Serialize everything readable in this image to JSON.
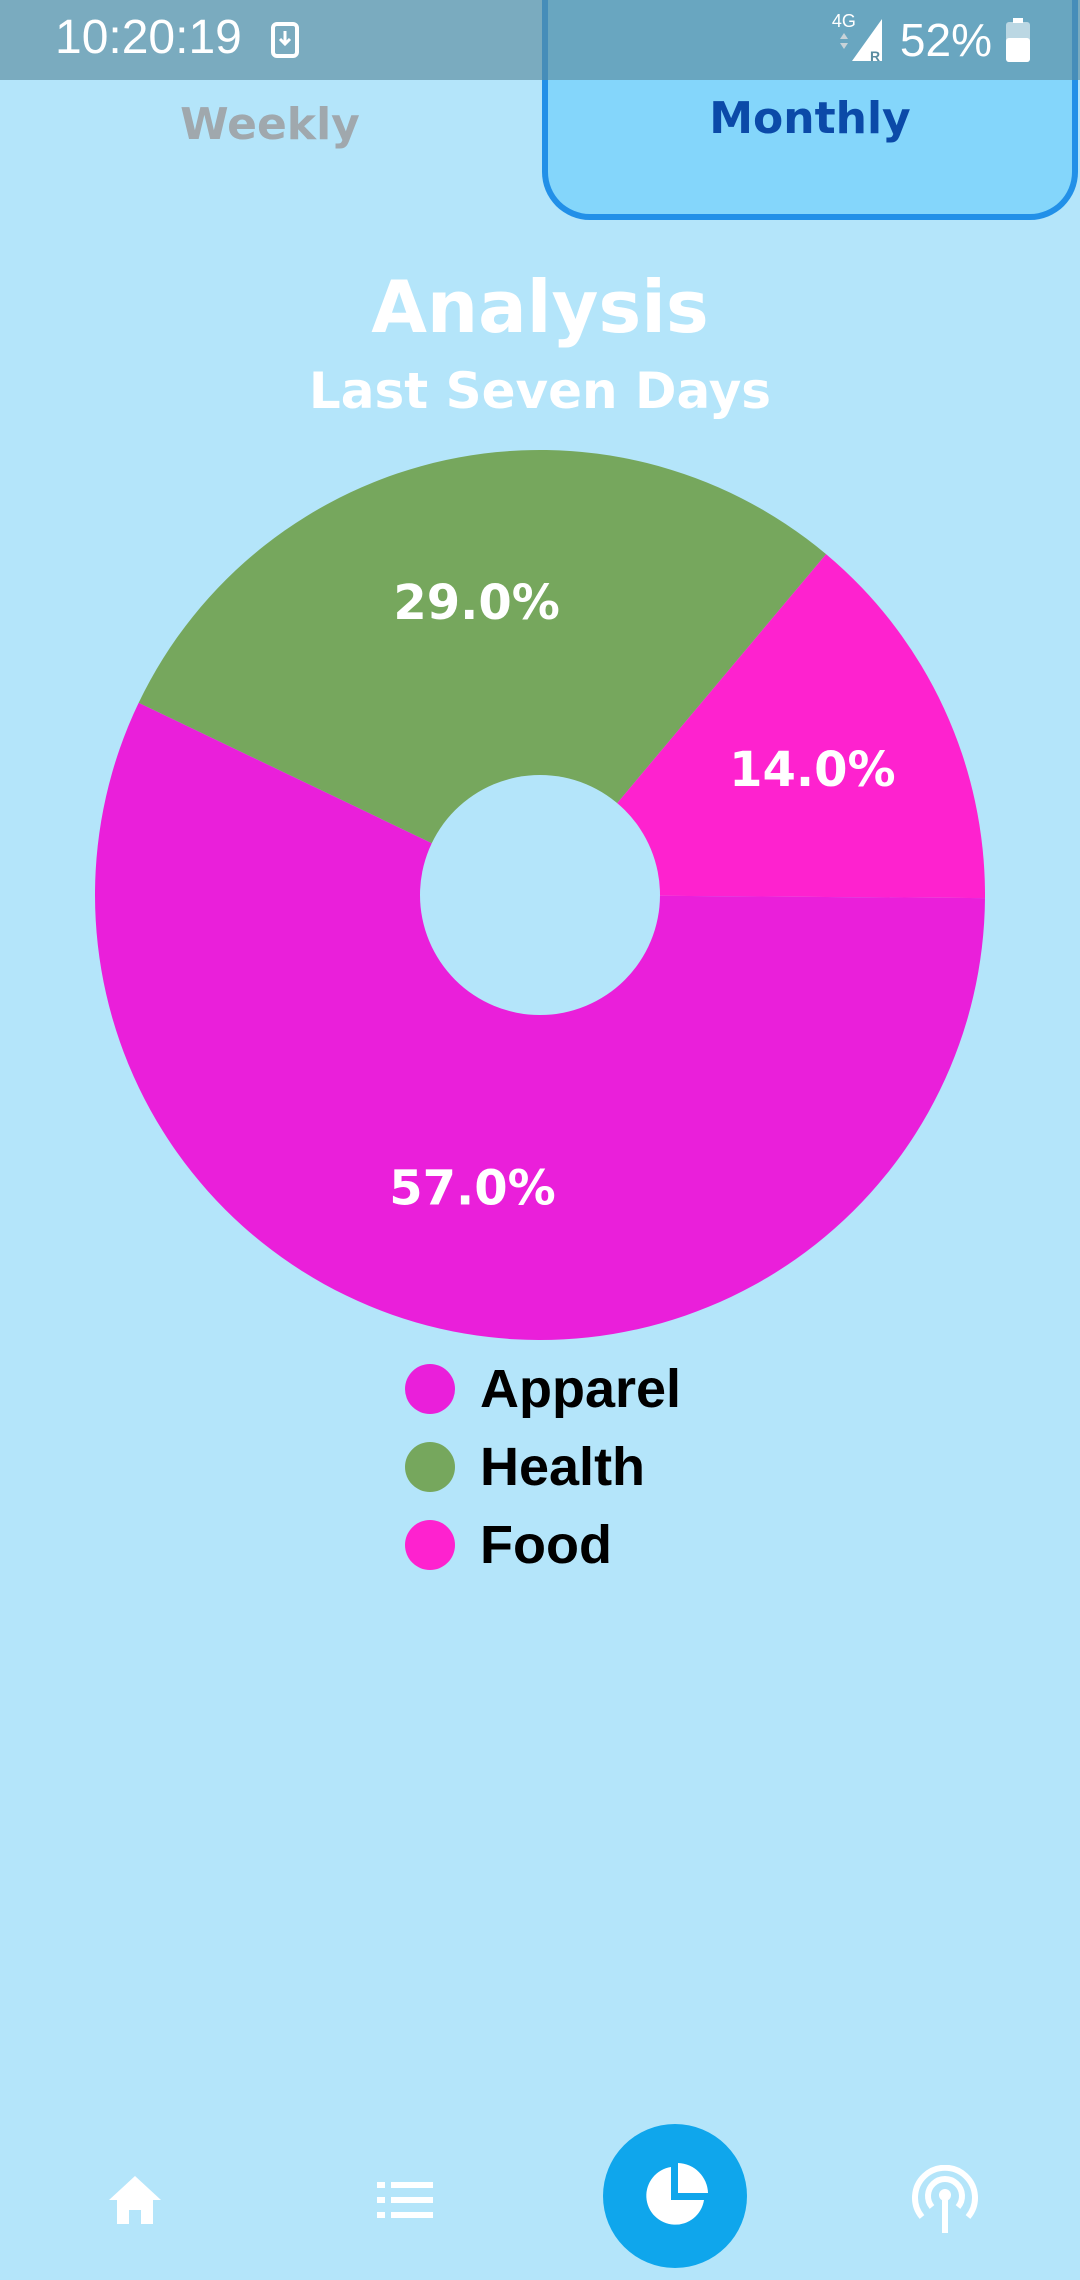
{
  "status_bar": {
    "time": "10:20:19",
    "network": "4G",
    "battery_percent": "52%",
    "icons": [
      "download-icon",
      "signal-icon",
      "battery-icon"
    ]
  },
  "tabs": [
    {
      "label": "Weekly",
      "selected": false
    },
    {
      "label": "Monthly",
      "selected": true
    }
  ],
  "header": {
    "title": "Analysis",
    "subtitle": "Last Seven Days"
  },
  "chart_data": {
    "type": "pie",
    "donut": true,
    "slices": [
      {
        "label": "Food",
        "value": 14.0,
        "display": "14.0%",
        "color": "#fe22cf"
      },
      {
        "label": "Apparel",
        "value": 57.0,
        "display": "57.0%",
        "color": "#ea1fda"
      },
      {
        "label": "Health",
        "value": 29.0,
        "display": "29.0%",
        "color": "#76a75d"
      }
    ],
    "legend": [
      {
        "label": "Apparel",
        "color": "#ea1fda"
      },
      {
        "label": "Health",
        "color": "#76a75d"
      },
      {
        "label": "Food",
        "color": "#fe22cf"
      }
    ],
    "legend_placement": "bottom"
  },
  "bottom_nav": {
    "items": [
      {
        "icon": "home-icon",
        "active": false
      },
      {
        "icon": "list-icon",
        "active": false
      },
      {
        "icon": "pie-chart-icon",
        "active": true
      },
      {
        "icon": "broadcast-icon",
        "active": false
      }
    ],
    "active_color": "#0fa6ec"
  },
  "colors": {
    "background": "#b4e5fa",
    "tab_active_bg": "#84d6fb",
    "tab_active_border": "#2290e8",
    "tab_active_text": "#0b4aa8",
    "tab_inactive_text": "#a0a8ad"
  }
}
